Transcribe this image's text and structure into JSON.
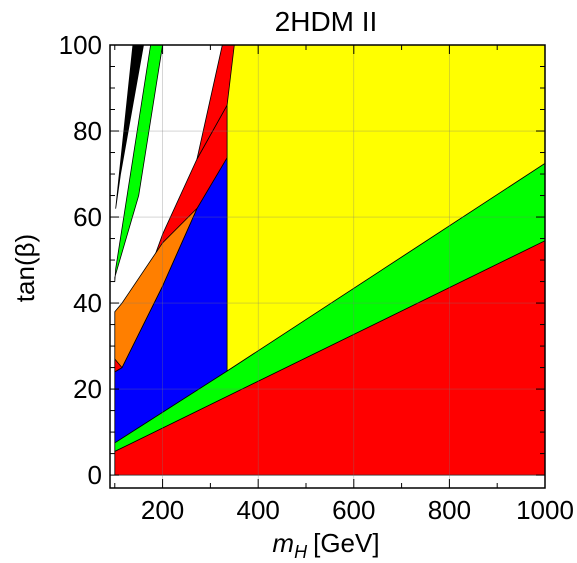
{
  "chart_data": {
    "type": "area",
    "title": "2HDM II",
    "xlabel_main": "m",
    "xlabel_sub": "H",
    "xlabel_unit": "[GeV]",
    "ylabel": "tan(β)",
    "xlim": [
      90,
      1000
    ],
    "ylim": [
      -3,
      100
    ],
    "xticks": [
      200,
      400,
      600,
      800,
      1000
    ],
    "yticks": [
      0,
      20,
      40,
      60,
      80,
      100
    ],
    "grid": true,
    "legend": "none",
    "colors": {
      "red": "#ff0000",
      "green": "#00ff00",
      "yellow": "#ffff00",
      "blue": "#0000ff",
      "orange": "#ff7f00",
      "black": "#000000"
    },
    "regions": [
      {
        "color": "red",
        "points": [
          [
            100,
            5.5
          ],
          [
            1000,
            54.5
          ],
          [
            1000,
            0
          ],
          [
            100,
            0
          ]
        ]
      },
      {
        "color": "green",
        "points": [
          [
            100,
            5.5
          ],
          [
            100,
            7.5
          ],
          [
            335,
            24.2
          ],
          [
            1000,
            72.5
          ],
          [
            1000,
            54.5
          ]
        ]
      },
      {
        "color": "yellow",
        "points": [
          [
            335,
            24.2
          ],
          [
            1000,
            72.5
          ],
          [
            1000,
            100
          ],
          [
            335,
            100
          ]
        ]
      },
      {
        "color": "blue",
        "points": [
          [
            100,
            7.5
          ],
          [
            335,
            24.2
          ],
          [
            335,
            73.8
          ],
          [
            272,
            62
          ],
          [
            200,
            44
          ],
          [
            115,
            25
          ],
          [
            100,
            24
          ]
        ]
      },
      {
        "color": "red",
        "points": [
          [
            335,
            73.8
          ],
          [
            335,
            86
          ],
          [
            272,
            73.5
          ],
          [
            200,
            56
          ],
          [
            115,
            30
          ],
          [
            100,
            27
          ],
          [
            100,
            24
          ],
          [
            115,
            25
          ],
          [
            200,
            44
          ],
          [
            272,
            62
          ]
        ]
      },
      {
        "color": "red",
        "points": [
          [
            272,
            73.5
          ],
          [
            335,
            86
          ],
          [
            350,
            100
          ],
          [
            325,
            100
          ]
        ]
      },
      {
        "color": "orange",
        "points": [
          [
            100,
            27
          ],
          [
            100,
            38
          ],
          [
            115,
            40
          ],
          [
            200,
            54
          ],
          [
            272,
            62
          ],
          [
            200,
            44
          ],
          [
            115,
            25
          ]
        ]
      },
      {
        "color": "green",
        "points": [
          [
            100,
            45
          ],
          [
            102,
            48
          ],
          [
            175,
            100
          ],
          [
            200,
            100
          ],
          [
            150,
            65
          ],
          [
            100,
            46
          ]
        ]
      },
      {
        "color": "black",
        "points": [
          [
            102,
            62
          ],
          [
            112,
            70
          ],
          [
            160,
            100
          ],
          [
            138,
            100
          ]
        ]
      }
    ]
  }
}
